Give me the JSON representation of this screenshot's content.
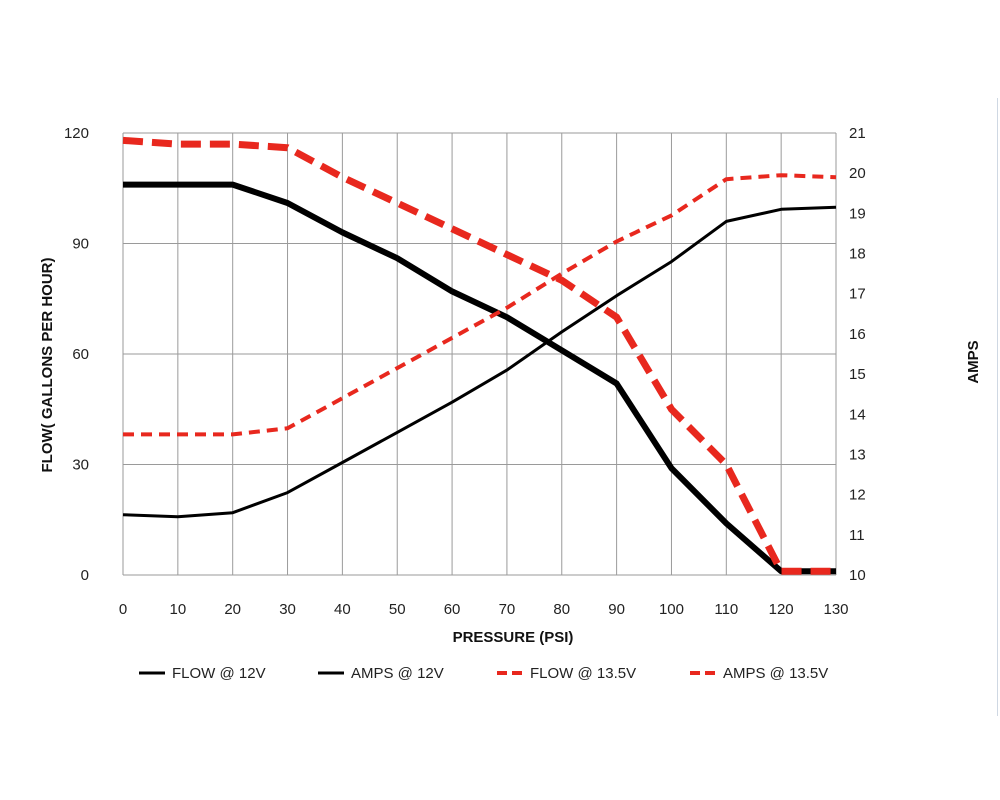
{
  "chart_data": {
    "type": "line",
    "title": "",
    "xlabel": "PRESSURE (PSI)",
    "ylabel_left": "FLOW( GALLONS PER HOUR)",
    "ylabel_right": "AMPS",
    "x": [
      0,
      10,
      20,
      30,
      40,
      50,
      60,
      70,
      80,
      90,
      100,
      110,
      120,
      130
    ],
    "x_ticks": [
      "0",
      "10",
      "20",
      "30",
      "40",
      "50",
      "60",
      "70",
      "80",
      "90",
      "100",
      "110",
      "120",
      "130"
    ],
    "xlim": [
      0,
      130
    ],
    "ylim_left": [
      0,
      120
    ],
    "ylim_right": [
      10,
      21
    ],
    "y_ticks_left": [
      "0",
      "30",
      "60",
      "90",
      "120"
    ],
    "y_ticks_right": [
      "10",
      "11",
      "12",
      "13",
      "14",
      "15",
      "16",
      "17",
      "18",
      "19",
      "20",
      "21"
    ],
    "grid": "vertical lines at every x tick, horizontal lines at left axis ticks",
    "legend_position": "bottom",
    "series": [
      {
        "name": "FLOW @ 12V",
        "axis": "left",
        "color": "#000000",
        "style": "solid",
        "weight": "thick",
        "values": [
          106,
          106,
          106,
          101,
          93,
          86,
          77,
          70,
          61,
          52,
          29,
          14,
          1,
          1
        ]
      },
      {
        "name": "AMPS @ 12V",
        "axis": "right",
        "color": "#000000",
        "style": "solid",
        "weight": "thin",
        "values": [
          11.5,
          11.45,
          11.55,
          12.05,
          12.8,
          13.55,
          14.3,
          15.1,
          16.05,
          16.95,
          17.8,
          18.8,
          19.1,
          19.15
        ]
      },
      {
        "name": "FLOW @ 13.5V",
        "axis": "left",
        "color": "#e8281e",
        "style": "dashed",
        "weight": "thick",
        "values": [
          118,
          117,
          117,
          116,
          108,
          101,
          94,
          87,
          80,
          70,
          45,
          30,
          1,
          1
        ]
      },
      {
        "name": "AMPS @ 13.5V",
        "axis": "right",
        "color": "#e8281e",
        "style": "dashed",
        "weight": "thin",
        "values": [
          13.5,
          13.5,
          13.5,
          13.65,
          14.4,
          15.15,
          15.9,
          16.65,
          17.5,
          18.3,
          18.95,
          19.85,
          19.95,
          19.9
        ]
      }
    ]
  }
}
